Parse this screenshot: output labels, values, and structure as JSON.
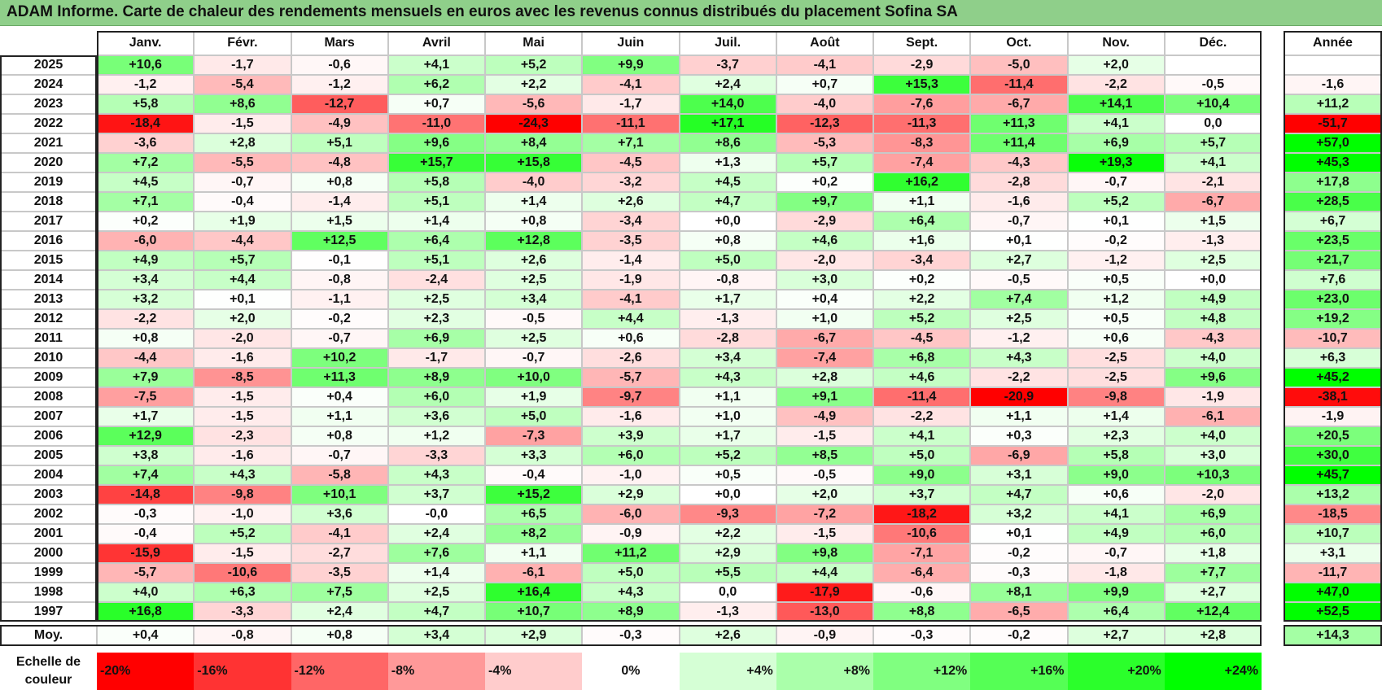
{
  "title": "ADAM Informe. Carte de chaleur des rendements mensuels en euros avec les revenus connus distribués du placement Sofina SA",
  "chart_data": {
    "type": "heatmap",
    "title": "ADAM Informe. Carte de chaleur des rendements mensuels en euros avec les revenus connus distribués du placement Sofina SA",
    "columns": [
      "Janv.",
      "Févr.",
      "Mars",
      "Avril",
      "Mai",
      "Juin",
      "Juil.",
      "Août",
      "Sept.",
      "Oct.",
      "Nov.",
      "Déc."
    ],
    "year_header": "Année",
    "rows": [
      {
        "year": "2025",
        "values": [
          "+10,6",
          "-1,7",
          "-0,6",
          "+4,1",
          "+5,2",
          "+9,9",
          "-3,7",
          "-4,1",
          "-2,9",
          "-5,0",
          "+2,0",
          ""
        ],
        "annual": ""
      },
      {
        "year": "2024",
        "values": [
          "-1,2",
          "-5,4",
          "-1,2",
          "+6,2",
          "+2,2",
          "-4,1",
          "+2,4",
          "+0,7",
          "+15,3",
          "-11,4",
          "-2,2",
          "-0,5"
        ],
        "annual": "-1,6"
      },
      {
        "year": "2023",
        "values": [
          "+5,8",
          "+8,6",
          "-12,7",
          "+0,7",
          "-5,6",
          "-1,7",
          "+14,0",
          "-4,0",
          "-7,6",
          "-6,7",
          "+14,1",
          "+10,4"
        ],
        "annual": "+11,2"
      },
      {
        "year": "2022",
        "values": [
          "-18,4",
          "-1,5",
          "-4,9",
          "-11,0",
          "-24,3",
          "-11,1",
          "+17,1",
          "-12,3",
          "-11,3",
          "+11,3",
          "+4,1",
          "0,0"
        ],
        "annual": "-51,7"
      },
      {
        "year": "2021",
        "values": [
          "-3,6",
          "+2,8",
          "+5,1",
          "+9,6",
          "+8,4",
          "+7,1",
          "+8,6",
          "-5,3",
          "-8,3",
          "+11,4",
          "+6,9",
          "+5,7"
        ],
        "annual": "+57,0"
      },
      {
        "year": "2020",
        "values": [
          "+7,2",
          "-5,5",
          "-4,8",
          "+15,7",
          "+15,8",
          "-4,5",
          "+1,3",
          "+5,7",
          "-7,4",
          "-4,3",
          "+19,3",
          "+4,1"
        ],
        "annual": "+45,3"
      },
      {
        "year": "2019",
        "values": [
          "+4,5",
          "-0,7",
          "+0,8",
          "+5,8",
          "-4,0",
          "-3,2",
          "+4,5",
          "+0,2",
          "+16,2",
          "-2,8",
          "-0,7",
          "-2,1"
        ],
        "annual": "+17,8"
      },
      {
        "year": "2018",
        "values": [
          "+7,1",
          "-0,4",
          "-1,4",
          "+5,1",
          "+1,4",
          "+2,6",
          "+4,7",
          "+9,7",
          "+1,1",
          "-1,6",
          "+5,2",
          "-6,7"
        ],
        "annual": "+28,5"
      },
      {
        "year": "2017",
        "values": [
          "+0,2",
          "+1,9",
          "+1,5",
          "+1,4",
          "+0,8",
          "-3,4",
          "+0,0",
          "-2,9",
          "+6,4",
          "-0,7",
          "+0,1",
          "+1,5"
        ],
        "annual": "+6,7"
      },
      {
        "year": "2016",
        "values": [
          "-6,0",
          "-4,4",
          "+12,5",
          "+6,4",
          "+12,8",
          "-3,5",
          "+0,8",
          "+4,6",
          "+1,6",
          "+0,1",
          "-0,2",
          "-1,3"
        ],
        "annual": "+23,5"
      },
      {
        "year": "2015",
        "values": [
          "+4,9",
          "+5,7",
          "-0,1",
          "+5,1",
          "+2,6",
          "-1,4",
          "+5,0",
          "-2,0",
          "-3,4",
          "+2,7",
          "-1,2",
          "+2,5"
        ],
        "annual": "+21,7"
      },
      {
        "year": "2014",
        "values": [
          "+3,4",
          "+4,4",
          "-0,8",
          "-2,4",
          "+2,5",
          "-1,9",
          "-0,8",
          "+3,0",
          "+0,2",
          "-0,5",
          "+0,5",
          "+0,0"
        ],
        "annual": "+7,6"
      },
      {
        "year": "2013",
        "values": [
          "+3,2",
          "+0,1",
          "-1,1",
          "+2,5",
          "+3,4",
          "-4,1",
          "+1,7",
          "+0,4",
          "+2,2",
          "+7,4",
          "+1,2",
          "+4,9"
        ],
        "annual": "+23,0"
      },
      {
        "year": "2012",
        "values": [
          "-2,2",
          "+2,0",
          "-0,2",
          "+2,3",
          "-0,5",
          "+4,4",
          "-1,3",
          "+1,0",
          "+5,2",
          "+2,5",
          "+0,5",
          "+4,8"
        ],
        "annual": "+19,2"
      },
      {
        "year": "2011",
        "values": [
          "+0,8",
          "-2,0",
          "-0,7",
          "+6,9",
          "+2,5",
          "+0,6",
          "-2,8",
          "-6,7",
          "-4,5",
          "-1,2",
          "+0,6",
          "-4,3"
        ],
        "annual": "-10,7"
      },
      {
        "year": "2010",
        "values": [
          "-4,4",
          "-1,6",
          "+10,2",
          "-1,7",
          "-0,7",
          "-2,6",
          "+3,4",
          "-7,4",
          "+6,8",
          "+4,3",
          "-2,5",
          "+4,0"
        ],
        "annual": "+6,3"
      },
      {
        "year": "2009",
        "values": [
          "+7,9",
          "-8,5",
          "+11,3",
          "+8,9",
          "+10,0",
          "-5,7",
          "+4,3",
          "+2,8",
          "+4,6",
          "-2,2",
          "-2,5",
          "+9,6"
        ],
        "annual": "+45,2"
      },
      {
        "year": "2008",
        "values": [
          "-7,5",
          "-1,5",
          "+0,4",
          "+6,0",
          "+1,9",
          "-9,7",
          "+1,1",
          "+9,1",
          "-11,4",
          "-20,9",
          "-9,8",
          "-1,9"
        ],
        "annual": "-38,1"
      },
      {
        "year": "2007",
        "values": [
          "+1,7",
          "-1,5",
          "+1,1",
          "+3,6",
          "+5,0",
          "-1,6",
          "+1,0",
          "-4,9",
          "-2,2",
          "+1,1",
          "+1,4",
          "-6,1"
        ],
        "annual": "-1,9"
      },
      {
        "year": "2006",
        "values": [
          "+12,9",
          "-2,3",
          "+0,8",
          "+1,2",
          "-7,3",
          "+3,9",
          "+1,7",
          "-1,5",
          "+4,1",
          "+0,3",
          "+2,3",
          "+4,0"
        ],
        "annual": "+20,5"
      },
      {
        "year": "2005",
        "values": [
          "+3,8",
          "-1,6",
          "-0,7",
          "-3,3",
          "+3,3",
          "+6,0",
          "+5,2",
          "+8,5",
          "+5,0",
          "-6,9",
          "+5,8",
          "+3,0"
        ],
        "annual": "+30,0"
      },
      {
        "year": "2004",
        "values": [
          "+7,4",
          "+4,3",
          "-5,8",
          "+4,3",
          "-0,4",
          "-1,0",
          "+0,5",
          "-0,5",
          "+9,0",
          "+3,1",
          "+9,0",
          "+10,3"
        ],
        "annual": "+45,7"
      },
      {
        "year": "2003",
        "values": [
          "-14,8",
          "-9,8",
          "+10,1",
          "+3,7",
          "+15,2",
          "+2,9",
          "+0,0",
          "+2,0",
          "+3,7",
          "+4,7",
          "+0,6",
          "-2,0"
        ],
        "annual": "+13,2"
      },
      {
        "year": "2002",
        "values": [
          "-0,3",
          "-1,0",
          "+3,6",
          "-0,0",
          "+6,5",
          "-6,0",
          "-9,3",
          "-7,2",
          "-18,2",
          "+3,2",
          "+4,1",
          "+6,9"
        ],
        "annual": "-18,5"
      },
      {
        "year": "2001",
        "values": [
          "-0,4",
          "+5,2",
          "-4,1",
          "+2,4",
          "+8,2",
          "-0,9",
          "+2,2",
          "-1,5",
          "-10,6",
          "+0,1",
          "+4,9",
          "+6,0"
        ],
        "annual": "+10,7"
      },
      {
        "year": "2000",
        "values": [
          "-15,9",
          "-1,5",
          "-2,7",
          "+7,6",
          "+1,1",
          "+11,2",
          "+2,9",
          "+9,8",
          "-7,1",
          "-0,2",
          "-0,7",
          "+1,8"
        ],
        "annual": "+3,1"
      },
      {
        "year": "1999",
        "values": [
          "-5,7",
          "-10,6",
          "-3,5",
          "+1,4",
          "-6,1",
          "+5,0",
          "+5,5",
          "+4,4",
          "-6,4",
          "-0,3",
          "-1,8",
          "+7,7"
        ],
        "annual": "-11,7"
      },
      {
        "year": "1998",
        "values": [
          "+4,0",
          "+6,3",
          "+7,5",
          "+2,5",
          "+16,4",
          "+4,3",
          "0,0",
          "-17,9",
          "-0,6",
          "+8,1",
          "+9,9",
          "+2,7"
        ],
        "annual": "+47,0"
      },
      {
        "year": "1997",
        "values": [
          "+16,8",
          "-3,3",
          "+2,4",
          "+4,7",
          "+10,7",
          "+8,9",
          "-1,3",
          "-13,0",
          "+8,8",
          "-6,5",
          "+6,4",
          "+12,4"
        ],
        "annual": "+52,5"
      }
    ],
    "average": {
      "label": "Moy.",
      "values": [
        "+0,4",
        "-0,8",
        "+0,8",
        "+3,4",
        "+2,9",
        "-0,3",
        "+2,6",
        "-0,9",
        "-0,3",
        "-0,2",
        "+2,7",
        "+2,8"
      ],
      "annual": "+14,3"
    },
    "scale": {
      "label_line1": "Echelle de",
      "label_line2": "couleur",
      "steps": [
        "-20%",
        "-16%",
        "-12%",
        "-8%",
        "-4%",
        "0%",
        "+4%",
        "+8%",
        "+12%",
        "+16%",
        "+20%",
        "+24%"
      ]
    },
    "colors": {
      "negative_max": "#ff0000",
      "neutral": "#ffffff",
      "positive_max": "#00ff00"
    }
  }
}
